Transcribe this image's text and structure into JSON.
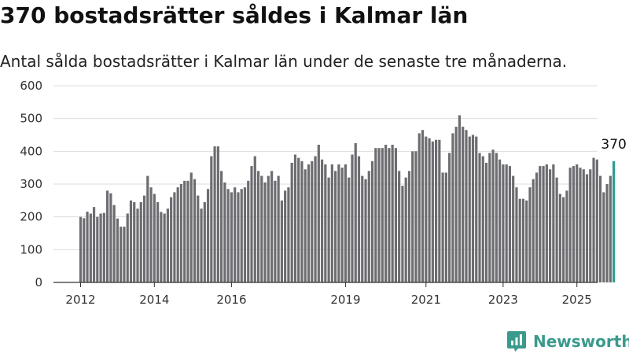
{
  "title": "370 bostadsrätter såldes i Kalmar län",
  "subtitle": "Antal sålda bostadsrätter i Kalmar län under de senaste tre månaderna.",
  "brand": {
    "name": "Newsworthy",
    "logo_icon": "newsworthy-logo-icon",
    "color": "#3a9a8c"
  },
  "chart_data": {
    "type": "bar",
    "title": "",
    "xlabel": "",
    "ylabel": "",
    "ylim": [
      0,
      600
    ],
    "yticks": [
      0,
      100,
      200,
      300,
      400,
      500,
      600
    ],
    "xticks": [
      {
        "label": "2012",
        "index": 0
      },
      {
        "label": "2014",
        "index": 22
      },
      {
        "label": "2016",
        "index": 45
      },
      {
        "label": "2019",
        "index": 79
      },
      {
        "label": "2021",
        "index": 103
      },
      {
        "label": "2023",
        "index": 126
      },
      {
        "label": "2025",
        "index": 148
      }
    ],
    "bar_color": "#6d6c71",
    "highlight_color": "#2a9d8f",
    "highlight_label": "370",
    "grid": true,
    "legend": "none",
    "values": [
      200,
      196,
      216,
      210,
      230,
      200,
      210,
      212,
      280,
      272,
      236,
      195,
      170,
      170,
      210,
      250,
      245,
      225,
      245,
      265,
      325,
      290,
      270,
      245,
      215,
      210,
      225,
      260,
      275,
      290,
      300,
      310,
      310,
      335,
      315,
      265,
      225,
      245,
      285,
      385,
      415,
      415,
      340,
      305,
      285,
      275,
      290,
      275,
      285,
      290,
      310,
      355,
      385,
      340,
      325,
      305,
      325,
      340,
      310,
      325,
      250,
      280,
      290,
      365,
      390,
      380,
      370,
      345,
      360,
      370,
      385,
      420,
      375,
      360,
      320,
      360,
      340,
      360,
      350,
      360,
      320,
      390,
      425,
      385,
      325,
      315,
      340,
      370,
      410,
      410,
      410,
      420,
      410,
      420,
      410,
      340,
      295,
      320,
      340,
      400,
      400,
      455,
      465,
      445,
      440,
      430,
      435,
      435,
      335,
      335,
      395,
      455,
      475,
      510,
      475,
      465,
      445,
      450,
      445,
      395,
      385,
      365,
      395,
      405,
      395,
      375,
      360,
      360,
      355,
      325,
      290,
      255,
      255,
      250,
      290,
      315,
      335,
      355,
      355,
      360,
      345,
      360,
      320,
      270,
      260,
      280,
      350,
      355,
      360,
      350,
      345,
      330,
      345,
      380,
      375,
      325,
      275,
      300,
      325,
      370
    ]
  }
}
